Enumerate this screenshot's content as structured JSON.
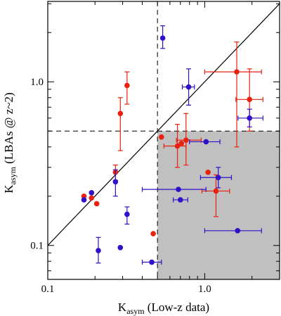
{
  "chart_data": {
    "type": "scatter",
    "xscale": "log",
    "yscale": "log",
    "xlim": [
      0.1,
      3.0
    ],
    "ylim": [
      0.062,
      3.1
    ],
    "xlabel_main": "K",
    "xlabel_sub": "asym",
    "xlabel_rest": " (Low-z data)",
    "ylabel_main": "K",
    "ylabel_sub": "asym",
    "ylabel_rest": " (LBAs @ z~2)",
    "x_ticks": [
      {
        "value": 0.1,
        "label": "0.1"
      },
      {
        "value": 1.0,
        "label": "1.0"
      }
    ],
    "y_ticks": [
      {
        "value": 0.1,
        "label": "0.1"
      },
      {
        "value": 1.0,
        "label": "1.0"
      }
    ],
    "threshold_x": 0.5,
    "threshold_y": 0.5,
    "one_to_one_line": true,
    "shaded_region": {
      "x_from": 0.5,
      "y_to": 0.5,
      "color": "#c0c0c0"
    },
    "series": [
      {
        "color": "#e8220f",
        "points": [
          {
            "x": 0.17,
            "y": 0.2
          },
          {
            "x": 0.19,
            "y": 0.195
          },
          {
            "x": 0.205,
            "y": 0.18
          },
          {
            "x": 0.27,
            "y": 0.28,
            "ylo": 0.25,
            "yhi": 0.31
          },
          {
            "x": 0.29,
            "y": 0.64,
            "ylo": 0.38,
            "yhi": 0.8
          },
          {
            "x": 0.32,
            "y": 0.95,
            "ylo": 0.73,
            "yhi": 1.15
          },
          {
            "x": 0.47,
            "y": 0.118
          },
          {
            "x": 0.53,
            "y": 0.46
          },
          {
            "x": 0.67,
            "y": 0.405,
            "xlo": 0.55,
            "xhi": 0.76,
            "ylo": 0.3,
            "yhi": 0.55
          },
          {
            "x": 0.71,
            "y": 0.42
          },
          {
            "x": 0.76,
            "y": 0.44,
            "xlo": 0.66,
            "xhi": 0.95,
            "ylo": 0.31,
            "yhi": 0.64
          },
          {
            "x": 1.05,
            "y": 0.28
          },
          {
            "x": 1.18,
            "y": 0.215,
            "xlo": 0.96,
            "xhi": 1.44,
            "ylo": 0.15,
            "yhi": 0.27
          },
          {
            "x": 1.6,
            "y": 1.15,
            "xlo": 1.0,
            "xhi": 2.3,
            "ylo": 0.4,
            "yhi": 1.75
          },
          {
            "x": 1.93,
            "y": 0.78,
            "xlo": 1.58,
            "xhi": 2.35,
            "ylo": 0.5,
            "yhi": 1.2
          }
        ]
      },
      {
        "color": "#3010c8",
        "points": [
          {
            "x": 0.17,
            "y": 0.19
          },
          {
            "x": 0.19,
            "y": 0.21
          },
          {
            "x": 0.21,
            "y": 0.093,
            "ylo": 0.078,
            "yhi": 0.112
          },
          {
            "x": 0.27,
            "y": 0.245,
            "ylo": 0.2,
            "yhi": 0.29
          },
          {
            "x": 0.29,
            "y": 0.097
          },
          {
            "x": 0.32,
            "y": 0.155,
            "ylo": 0.135,
            "yhi": 0.172
          },
          {
            "x": 0.46,
            "y": 0.079,
            "xlo": 0.4,
            "xhi": 0.53
          },
          {
            "x": 0.54,
            "y": 1.85,
            "ylo": 1.6,
            "yhi": 2.2
          },
          {
            "x": 0.68,
            "y": 0.22,
            "xlo": 0.4,
            "xhi": 1.02
          },
          {
            "x": 0.7,
            "y": 0.19,
            "xlo": 0.63,
            "xhi": 0.78
          },
          {
            "x": 0.79,
            "y": 0.93,
            "xlo": 0.72,
            "xhi": 0.86,
            "ylo": 0.72,
            "yhi": 1.2
          },
          {
            "x": 1.02,
            "y": 0.43,
            "xlo": 0.8,
            "xhi": 1.25
          },
          {
            "x": 1.22,
            "y": 0.26,
            "xlo": 0.94,
            "xhi": 1.48,
            "ylo": 0.225,
            "yhi": 0.3
          },
          {
            "x": 1.62,
            "y": 0.123,
            "xlo": 1.0,
            "xhi": 2.3
          },
          {
            "x": 1.93,
            "y": 0.6,
            "xlo": 1.63,
            "xhi": 2.35,
            "ylo": 0.53,
            "yhi": 0.68
          }
        ]
      }
    ]
  }
}
